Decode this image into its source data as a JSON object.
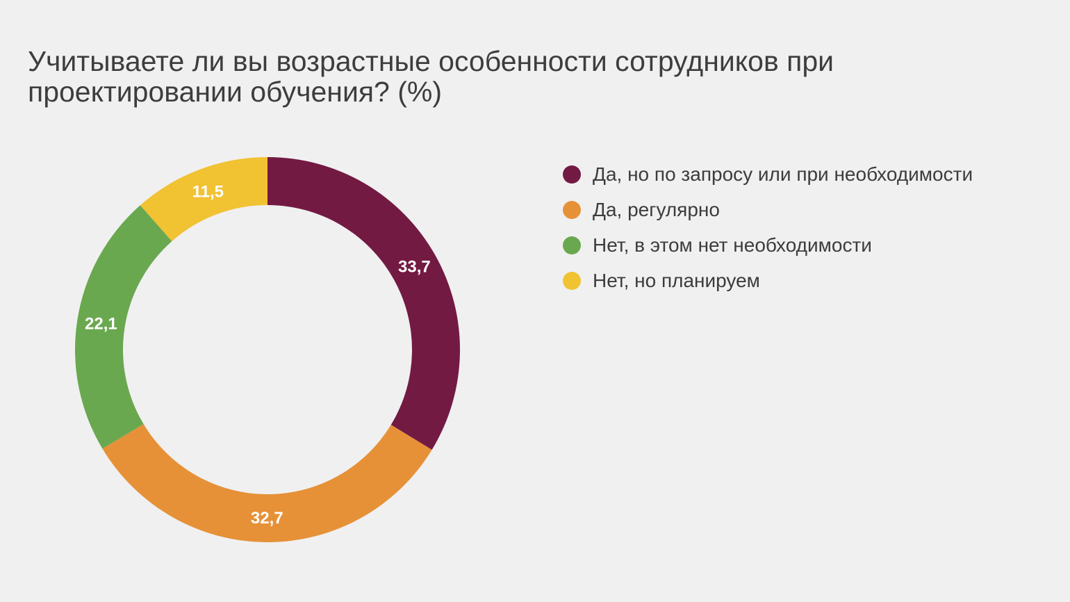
{
  "chart_data": {
    "type": "donut",
    "title": "Учитываете ли вы возрастные особенности сотрудников при проектировании обучения? (%)",
    "series": [
      {
        "name": "Да, но по запросу или при необходимости",
        "value": 33.7,
        "label": "33,7",
        "color": "#731a43"
      },
      {
        "name": "Да, регулярно",
        "value": 32.7,
        "label": "32,7",
        "color": "#e69138"
      },
      {
        "name": "Нет, в этом нет необходимости",
        "value": 22.1,
        "label": "22,1",
        "color": "#6aa84f"
      },
      {
        "name": "Нет, но планируем",
        "value": 11.5,
        "label": "11,5",
        "color": "#f1c232"
      }
    ],
    "legend_position": "right",
    "start_angle": "top",
    "direction": "clockwise"
  }
}
